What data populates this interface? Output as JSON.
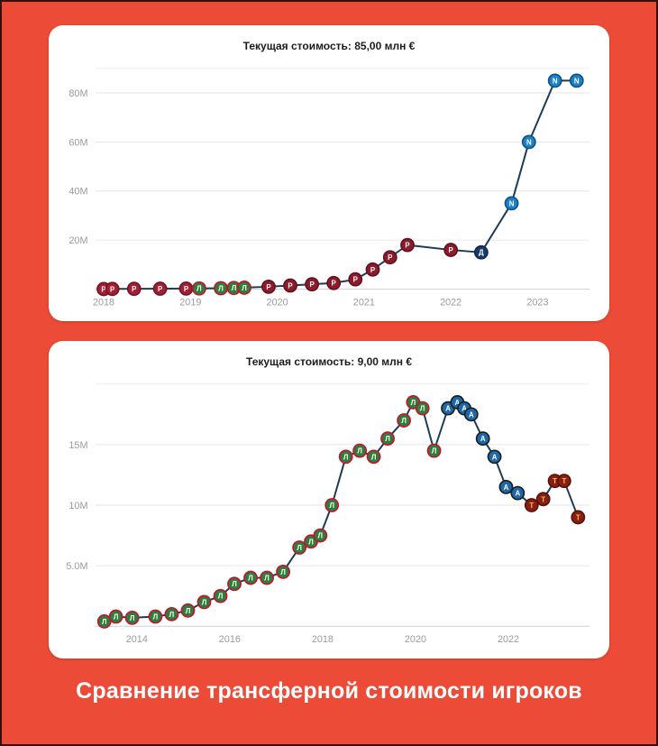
{
  "caption": "Сравнение трансферной стоимости игроков",
  "club_markers": {
    "rustavi": {
      "fill": "#a31f34",
      "ring": "#701324",
      "letter": "Р",
      "letter_color": "#ffffff"
    },
    "lokomotiv-moscow": {
      "fill": "#2e7d3a",
      "ring": "#c8102e",
      "letter": "Л",
      "letter_color": "#ffffff"
    },
    "rubin-kazan": {
      "fill": "#8e1b2c",
      "ring": "#5f1120",
      "letter": "Р",
      "letter_color": "#ffffff"
    },
    "dinamo-batumi": {
      "fill": "#1b3a6b",
      "ring": "#10264a",
      "letter": "Д",
      "letter_color": "#ffffff"
    },
    "napoli": {
      "fill": "#1e81c4",
      "ring": "#0f4f86",
      "letter": "N",
      "letter_color": "#ffffff"
    },
    "atalanta": {
      "fill": "#1d68a8",
      "ring": "#1a1a1a",
      "letter": "A",
      "letter_color": "#ffffff"
    },
    "torino": {
      "fill": "#8a1e12",
      "ring": "#55110a",
      "letter": "T",
      "letter_color": "#f3c14b"
    }
  },
  "chart_data": [
    {
      "type": "line",
      "title": "Текущая стоимость: 85,00 млн €",
      "current_value_millions": 85.0,
      "line_color": "#1c3a57",
      "grid": true,
      "xlim": [
        2017.9,
        2023.6
      ],
      "ylim": [
        0,
        90
      ],
      "yticks": [
        {
          "value": 20,
          "label": "20M"
        },
        {
          "value": 40,
          "label": "40M"
        },
        {
          "value": 60,
          "label": "60M"
        },
        {
          "value": 80,
          "label": "80M"
        }
      ],
      "xticks": [
        {
          "value": 2018,
          "label": "2018"
        },
        {
          "value": 2019,
          "label": "2019"
        },
        {
          "value": 2020,
          "label": "2020"
        },
        {
          "value": 2021,
          "label": "2021"
        },
        {
          "value": 2022,
          "label": "2022"
        },
        {
          "value": 2023,
          "label": "2023"
        }
      ],
      "points": [
        {
          "x": 2018.0,
          "v": 0.05,
          "club": "rustavi"
        },
        {
          "x": 2018.1,
          "v": 0.1,
          "club": "rustavi"
        },
        {
          "x": 2018.35,
          "v": 0.15,
          "club": "rustavi"
        },
        {
          "x": 2018.65,
          "v": 0.2,
          "club": "rustavi"
        },
        {
          "x": 2018.95,
          "v": 0.25,
          "club": "rustavi"
        },
        {
          "x": 2019.1,
          "v": 0.3,
          "club": "lokomotiv-moscow"
        },
        {
          "x": 2019.35,
          "v": 0.4,
          "club": "lokomotiv-moscow"
        },
        {
          "x": 2019.5,
          "v": 0.5,
          "club": "lokomotiv-moscow"
        },
        {
          "x": 2019.62,
          "v": 0.6,
          "club": "lokomotiv-moscow"
        },
        {
          "x": 2019.9,
          "v": 1.0,
          "club": "rubin-kazan"
        },
        {
          "x": 2020.15,
          "v": 1.5,
          "club": "rubin-kazan"
        },
        {
          "x": 2020.4,
          "v": 2.0,
          "club": "rubin-kazan"
        },
        {
          "x": 2020.65,
          "v": 2.5,
          "club": "rubin-kazan"
        },
        {
          "x": 2020.9,
          "v": 4.0,
          "club": "rubin-kazan"
        },
        {
          "x": 2021.1,
          "v": 8.0,
          "club": "rubin-kazan"
        },
        {
          "x": 2021.3,
          "v": 13.0,
          "club": "rubin-kazan"
        },
        {
          "x": 2021.5,
          "v": 18.0,
          "club": "rubin-kazan"
        },
        {
          "x": 2022.0,
          "v": 16.0,
          "club": "rubin-kazan"
        },
        {
          "x": 2022.35,
          "v": 15.0,
          "club": "dinamo-batumi"
        },
        {
          "x": 2022.7,
          "v": 35.0,
          "club": "napoli"
        },
        {
          "x": 2022.9,
          "v": 60.0,
          "club": "napoli"
        },
        {
          "x": 2023.2,
          "v": 85.0,
          "club": "napoli"
        },
        {
          "x": 2023.45,
          "v": 85.0,
          "club": "napoli"
        }
      ]
    },
    {
      "type": "line",
      "title": "Текущая стоимость: 9,00 млн €",
      "current_value_millions": 9.0,
      "line_color": "#1c3a57",
      "grid": true,
      "xlim": [
        2013.1,
        2023.75
      ],
      "ylim": [
        0,
        20
      ],
      "yticks": [
        {
          "value": 5,
          "label": "5.0M"
        },
        {
          "value": 10,
          "label": "10M"
        },
        {
          "value": 15,
          "label": "15M"
        }
      ],
      "xticks": [
        {
          "value": 2014,
          "label": "2014"
        },
        {
          "value": 2016,
          "label": "2016"
        },
        {
          "value": 2018,
          "label": "2018"
        },
        {
          "value": 2020,
          "label": "2020"
        },
        {
          "value": 2022,
          "label": "2022"
        }
      ],
      "points": [
        {
          "x": 2013.3,
          "v": 0.4,
          "club": "lokomotiv-moscow"
        },
        {
          "x": 2013.55,
          "v": 0.8,
          "club": "lokomotiv-moscow"
        },
        {
          "x": 2013.9,
          "v": 0.7,
          "club": "lokomotiv-moscow"
        },
        {
          "x": 2014.4,
          "v": 0.8,
          "club": "lokomotiv-moscow"
        },
        {
          "x": 2014.75,
          "v": 1.0,
          "club": "lokomotiv-moscow"
        },
        {
          "x": 2015.1,
          "v": 1.3,
          "club": "lokomotiv-moscow"
        },
        {
          "x": 2015.45,
          "v": 2.0,
          "club": "lokomotiv-moscow"
        },
        {
          "x": 2015.8,
          "v": 2.5,
          "club": "lokomotiv-moscow"
        },
        {
          "x": 2016.1,
          "v": 3.5,
          "club": "lokomotiv-moscow"
        },
        {
          "x": 2016.45,
          "v": 4.0,
          "club": "lokomotiv-moscow"
        },
        {
          "x": 2016.8,
          "v": 4.0,
          "club": "lokomotiv-moscow"
        },
        {
          "x": 2017.15,
          "v": 4.5,
          "club": "lokomotiv-moscow"
        },
        {
          "x": 2017.5,
          "v": 6.5,
          "club": "lokomotiv-moscow"
        },
        {
          "x": 2017.75,
          "v": 7.0,
          "club": "lokomotiv-moscow"
        },
        {
          "x": 2017.95,
          "v": 7.5,
          "club": "lokomotiv-moscow"
        },
        {
          "x": 2018.2,
          "v": 10.0,
          "club": "lokomotiv-moscow"
        },
        {
          "x": 2018.5,
          "v": 14.0,
          "club": "lokomotiv-moscow"
        },
        {
          "x": 2018.8,
          "v": 14.5,
          "club": "lokomotiv-moscow"
        },
        {
          "x": 2019.1,
          "v": 14.0,
          "club": "lokomotiv-moscow"
        },
        {
          "x": 2019.4,
          "v": 15.5,
          "club": "lokomotiv-moscow"
        },
        {
          "x": 2019.75,
          "v": 17.0,
          "club": "lokomotiv-moscow"
        },
        {
          "x": 2019.95,
          "v": 18.5,
          "club": "lokomotiv-moscow"
        },
        {
          "x": 2020.15,
          "v": 18.0,
          "club": "lokomotiv-moscow"
        },
        {
          "x": 2020.4,
          "v": 14.5,
          "club": "lokomotiv-moscow"
        },
        {
          "x": 2020.7,
          "v": 18.0,
          "club": "atalanta"
        },
        {
          "x": 2020.9,
          "v": 18.5,
          "club": "atalanta"
        },
        {
          "x": 2021.05,
          "v": 18.0,
          "club": "atalanta"
        },
        {
          "x": 2021.2,
          "v": 17.5,
          "club": "atalanta"
        },
        {
          "x": 2021.45,
          "v": 15.5,
          "club": "atalanta"
        },
        {
          "x": 2021.7,
          "v": 14.0,
          "club": "atalanta"
        },
        {
          "x": 2021.95,
          "v": 11.5,
          "club": "atalanta"
        },
        {
          "x": 2022.2,
          "v": 11.0,
          "club": "atalanta"
        },
        {
          "x": 2022.5,
          "v": 10.0,
          "club": "torino"
        },
        {
          "x": 2022.75,
          "v": 10.5,
          "club": "torino"
        },
        {
          "x": 2023.0,
          "v": 12.0,
          "club": "torino"
        },
        {
          "x": 2023.2,
          "v": 12.0,
          "club": "torino"
        },
        {
          "x": 2023.5,
          "v": 9.0,
          "club": "torino"
        }
      ]
    }
  ]
}
